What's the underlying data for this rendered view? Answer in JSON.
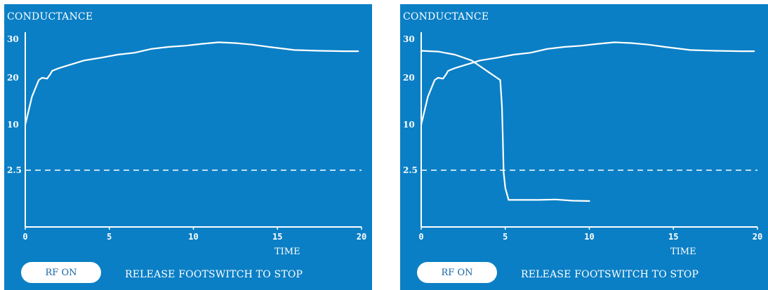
{
  "screens": [
    {
      "title": "CONDUCTANCE",
      "x_axis_label": "TIME",
      "rf_button_label": "RF ON",
      "status_text": "RELEASE FOOTSWITCH TO STOP"
    },
    {
      "title": "CONDUCTANCE",
      "x_axis_label": "TIME",
      "rf_button_label": "RF ON",
      "status_text": "RELEASE FOOTSWITCH TO STOP"
    }
  ],
  "chart_data": [
    {
      "type": "line",
      "xlabel": "TIME",
      "ylabel": "CONDUCTANCE",
      "xlim": [
        0,
        20
      ],
      "x_ticks": [
        "0",
        "5",
        "10",
        "15",
        "20"
      ],
      "y_ticks": [
        {
          "label": "30",
          "value": 30
        },
        {
          "label": "20",
          "value": 20
        },
        {
          "label": "10",
          "value": 10
        },
        {
          "label": "2.5",
          "value": 2.5
        }
      ],
      "threshold": 2.5,
      "series": [
        {
          "x": [
            0,
            0.4,
            0.8,
            1.0,
            1.3,
            1.5,
            1.6,
            2.0,
            3.5,
            4.5,
            5.5,
            6.5,
            7.5,
            8.5,
            9.5,
            10.5,
            11.5,
            12.5,
            13.5,
            14.5,
            16,
            17.5,
            19,
            19.8
          ],
          "y": [
            10,
            16,
            19.5,
            20,
            19.8,
            21,
            21.8,
            22.5,
            24.5,
            25.2,
            26,
            26.5,
            27.5,
            28,
            28.3,
            28.8,
            29.2,
            29,
            28.6,
            28,
            27.2,
            27,
            26.9,
            26.9
          ]
        }
      ]
    },
    {
      "type": "line",
      "xlabel": "TIME",
      "ylabel": "CONDUCTANCE",
      "xlim": [
        0,
        20
      ],
      "x_ticks": [
        "0",
        "5",
        "10",
        "15",
        "20"
      ],
      "y_ticks": [
        {
          "label": "30",
          "value": 30
        },
        {
          "label": "20",
          "value": 20
        },
        {
          "label": "10",
          "value": 10
        },
        {
          "label": "2.5",
          "value": 2.5
        }
      ],
      "threshold": 2.5,
      "series": [
        {
          "x": [
            0,
            0.4,
            0.8,
            1.0,
            1.3,
            1.5,
            1.6,
            2.0,
            3.5,
            4.5,
            5.5,
            6.5,
            7.5,
            8.5,
            9.5,
            10.5,
            11.5,
            12.5,
            13.5,
            14.5,
            16,
            17.5,
            19,
            19.8
          ],
          "y": [
            10,
            16,
            19.5,
            20,
            19.8,
            21,
            21.8,
            22.5,
            24.5,
            25.2,
            26,
            26.5,
            27.5,
            28,
            28.3,
            28.8,
            29.2,
            29,
            28.6,
            28,
            27.2,
            27,
            26.9,
            26.9
          ]
        },
        {
          "x": [
            0,
            1,
            2,
            3,
            3.5,
            4,
            4.5,
            4.7,
            4.8,
            4.85,
            4.9,
            5.0,
            5.2,
            6,
            7,
            8,
            9,
            10
          ],
          "y": [
            27,
            26.8,
            26,
            24.5,
            23,
            21.5,
            20,
            19.5,
            14,
            8,
            2,
            -2,
            -5,
            -5,
            -5,
            -4.9,
            -5.2,
            -5.3
          ]
        }
      ]
    }
  ]
}
